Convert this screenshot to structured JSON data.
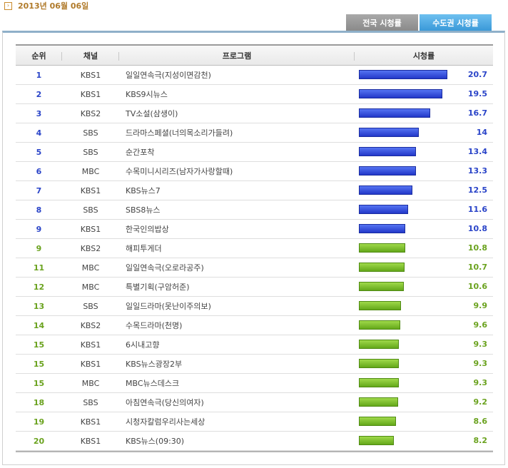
{
  "date": "2013년 06월 06일",
  "tabs": {
    "national": "전국 시청률",
    "capital": "수도권 시청률"
  },
  "table": {
    "headers": {
      "rank": "순위",
      "channel": "채널",
      "program": "프로그램",
      "rating": "시청률"
    },
    "max_rating": 20.7,
    "rows": [
      {
        "rank": "1",
        "channel": "KBS1",
        "program": "일일연속극(지성이면감천)",
        "rating": 20.7,
        "rating_label": "20.7",
        "color": "blue"
      },
      {
        "rank": "2",
        "channel": "KBS1",
        "program": "KBS9시뉴스",
        "rating": 19.5,
        "rating_label": "19.5",
        "color": "blue"
      },
      {
        "rank": "3",
        "channel": "KBS2",
        "program": "TV소설(삼생이)",
        "rating": 16.7,
        "rating_label": "16.7",
        "color": "blue"
      },
      {
        "rank": "4",
        "channel": "SBS",
        "program": "드라마스페셜(너의목소리가들려)",
        "rating": 14,
        "rating_label": "14",
        "color": "blue"
      },
      {
        "rank": "5",
        "channel": "SBS",
        "program": "순간포착",
        "rating": 13.4,
        "rating_label": "13.4",
        "color": "blue"
      },
      {
        "rank": "6",
        "channel": "MBC",
        "program": "수목미니시리즈(남자가사랑할때)",
        "rating": 13.3,
        "rating_label": "13.3",
        "color": "blue"
      },
      {
        "rank": "7",
        "channel": "KBS1",
        "program": "KBS뉴스7",
        "rating": 12.5,
        "rating_label": "12.5",
        "color": "blue"
      },
      {
        "rank": "8",
        "channel": "SBS",
        "program": "SBS8뉴스",
        "rating": 11.6,
        "rating_label": "11.6",
        "color": "blue"
      },
      {
        "rank": "9",
        "channel": "KBS1",
        "program": "한국인의밥상",
        "rating": 10.8,
        "rating_label": "10.8",
        "color": "blue"
      },
      {
        "rank": "9",
        "channel": "KBS2",
        "program": "해피투게더",
        "rating": 10.8,
        "rating_label": "10.8",
        "color": "green"
      },
      {
        "rank": "11",
        "channel": "MBC",
        "program": "일일연속극(오로라공주)",
        "rating": 10.7,
        "rating_label": "10.7",
        "color": "green"
      },
      {
        "rank": "12",
        "channel": "MBC",
        "program": "특별기획(구암허준)",
        "rating": 10.6,
        "rating_label": "10.6",
        "color": "green"
      },
      {
        "rank": "13",
        "channel": "SBS",
        "program": "일일드라마(못난이주의보)",
        "rating": 9.9,
        "rating_label": "9.9",
        "color": "green"
      },
      {
        "rank": "14",
        "channel": "KBS2",
        "program": "수목드라마(천명)",
        "rating": 9.6,
        "rating_label": "9.6",
        "color": "green"
      },
      {
        "rank": "15",
        "channel": "KBS1",
        "program": "6시내고향",
        "rating": 9.3,
        "rating_label": "9.3",
        "color": "green"
      },
      {
        "rank": "15",
        "channel": "KBS1",
        "program": "KBS뉴스광장2부",
        "rating": 9.3,
        "rating_label": "9.3",
        "color": "green"
      },
      {
        "rank": "15",
        "channel": "MBC",
        "program": "MBC뉴스데스크",
        "rating": 9.3,
        "rating_label": "9.3",
        "color": "green"
      },
      {
        "rank": "18",
        "channel": "SBS",
        "program": "아침연속극(당신의여자)",
        "rating": 9.2,
        "rating_label": "9.2",
        "color": "green"
      },
      {
        "rank": "19",
        "channel": "KBS1",
        "program": "시청자칼럼우리사는세상",
        "rating": 8.6,
        "rating_label": "8.6",
        "color": "green"
      },
      {
        "rank": "20",
        "channel": "KBS1",
        "program": "KBS뉴스(09:30)",
        "rating": 8.2,
        "rating_label": "8.2",
        "color": "green"
      }
    ]
  }
}
